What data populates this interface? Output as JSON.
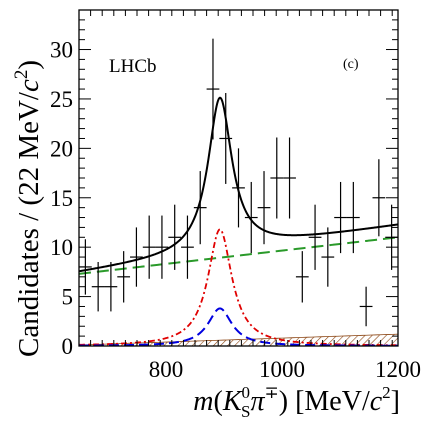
{
  "chart_data": {
    "type": "scatter",
    "panel_label": "(c)",
    "experiment_label": "LHCb",
    "ylabel_parts": {
      "a": "Candidates / (22 MeV/",
      "c": "c",
      "sup": "2",
      "b": ")"
    },
    "xlabel_parts": {
      "m": "m",
      "open": "(",
      "K": "K",
      "K_sup": "0",
      "K_sub": "S",
      "pi": "π",
      "pi_sup": "∓",
      "close": ")",
      "unit_a": " [MeV/",
      "c": "c",
      "unit_sup": "2",
      "unit_b": "]"
    },
    "xlim": [
      650,
      1200
    ],
    "ylim": [
      0,
      34
    ],
    "x_ticks": [
      800,
      1000,
      1200
    ],
    "x_tick_labels": [
      "800",
      "1000",
      "1200"
    ],
    "y_ticks": [
      0,
      5,
      10,
      15,
      20,
      25,
      30
    ],
    "y_tick_labels": [
      "0",
      "5",
      "10",
      "15",
      "20",
      "25",
      "30"
    ],
    "x_minor_step": 20,
    "y_minor_step": 1,
    "bin_width": 22,
    "points": [
      {
        "x": 661,
        "y": 8,
        "err": 2.8
      },
      {
        "x": 683,
        "y": 6,
        "err": 2.5
      },
      {
        "x": 705,
        "y": 6,
        "err": 2.5
      },
      {
        "x": 727,
        "y": 7,
        "err": 2.6
      },
      {
        "x": 749,
        "y": 9,
        "err": 3.0
      },
      {
        "x": 771,
        "y": 10,
        "err": 3.2
      },
      {
        "x": 793,
        "y": 10,
        "err": 3.2
      },
      {
        "x": 815,
        "y": 11,
        "err": 3.3
      },
      {
        "x": 837,
        "y": 10,
        "err": 3.2
      },
      {
        "x": 859,
        "y": 14,
        "err": 3.7
      },
      {
        "x": 881,
        "y": 26,
        "err": 5.1
      },
      {
        "x": 903,
        "y": 21,
        "err": 4.6
      },
      {
        "x": 925,
        "y": 16,
        "err": 4.0
      },
      {
        "x": 947,
        "y": 13,
        "err": 3.6
      },
      {
        "x": 969,
        "y": 14,
        "err": 3.7
      },
      {
        "x": 991,
        "y": 17,
        "err": 4.1
      },
      {
        "x": 1013,
        "y": 17,
        "err": 4.1
      },
      {
        "x": 1035,
        "y": 7,
        "err": 2.6
      },
      {
        "x": 1057,
        "y": 11,
        "err": 3.3
      },
      {
        "x": 1079,
        "y": 9,
        "err": 3.0
      },
      {
        "x": 1101,
        "y": 13,
        "err": 3.6
      },
      {
        "x": 1123,
        "y": 13,
        "err": 3.6
      },
      {
        "x": 1145,
        "y": 4,
        "err": 2.0
      },
      {
        "x": 1167,
        "y": 15,
        "err": 3.9
      },
      {
        "x": 1189,
        "y": 11,
        "err": 3.3
      }
    ],
    "curves": {
      "background_slope": {
        "start": 7.3,
        "end": 11.0,
        "color": "#2a9a2a"
      },
      "signal": {
        "mass": 893,
        "width": 50,
        "peak": 11.8,
        "color": "#e00000"
      },
      "other_peak": {
        "mass": 893,
        "width": 50,
        "peak": 3.8,
        "color": "#0000e0"
      },
      "total": {
        "color": "#000000"
      }
    },
    "hatch_band": {
      "start": 0.1,
      "end": 1.2,
      "color": "#8b4513"
    }
  }
}
